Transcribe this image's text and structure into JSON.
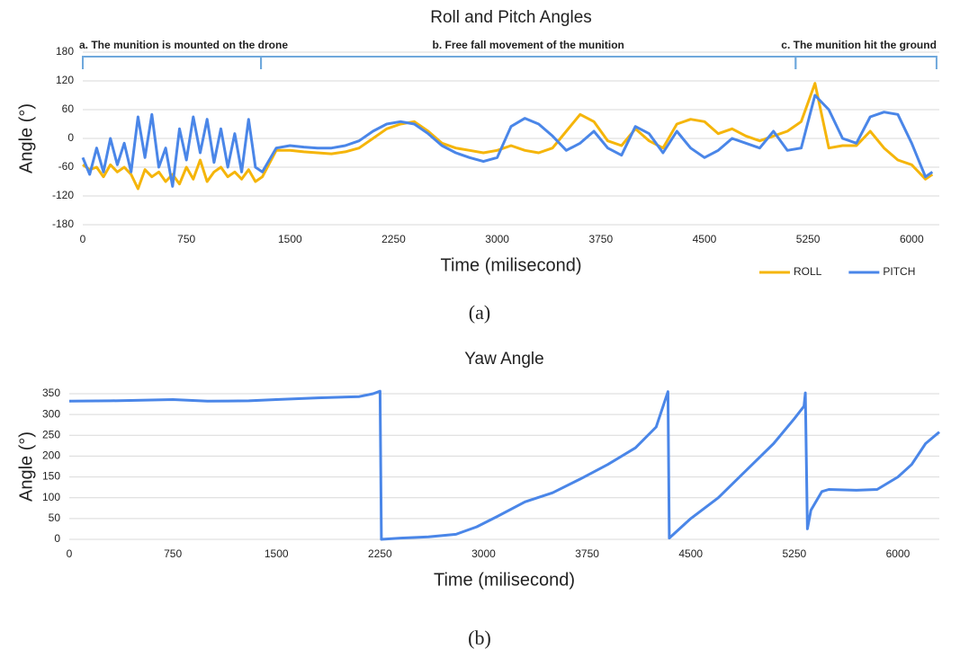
{
  "chart_data": [
    {
      "type": "line",
      "title": "Roll and Pitch Angles",
      "x_label": "Time (milisecond)",
      "y_label": "Angle (°)",
      "caption": "(a)",
      "x": [
        0,
        50,
        100,
        150,
        200,
        250,
        300,
        350,
        400,
        450,
        500,
        550,
        600,
        650,
        700,
        750,
        800,
        850,
        900,
        950,
        1000,
        1050,
        1100,
        1150,
        1200,
        1250,
        1300,
        1400,
        1500,
        1600,
        1700,
        1800,
        1900,
        2000,
        2100,
        2200,
        2300,
        2400,
        2500,
        2600,
        2700,
        2800,
        2900,
        3000,
        3100,
        3200,
        3300,
        3400,
        3500,
        3600,
        3700,
        3800,
        3900,
        4000,
        4100,
        4200,
        4300,
        4400,
        4500,
        4600,
        4700,
        4800,
        4900,
        5000,
        5100,
        5200,
        5300,
        5400,
        5500,
        5600,
        5700,
        5800,
        5900,
        6000,
        6100,
        6150
      ],
      "series": [
        {
          "name": "ROLL",
          "color": "#f5b50a",
          "values": [
            -55,
            -65,
            -60,
            -80,
            -55,
            -70,
            -60,
            -75,
            -105,
            -65,
            -80,
            -70,
            -90,
            -75,
            -95,
            -60,
            -85,
            -45,
            -90,
            -70,
            -60,
            -80,
            -70,
            -85,
            -65,
            -90,
            -80,
            -25,
            -25,
            -28,
            -30,
            -32,
            -28,
            -20,
            0,
            20,
            30,
            35,
            15,
            -10,
            -20,
            -25,
            -30,
            -25,
            -15,
            -25,
            -30,
            -20,
            15,
            50,
            35,
            -5,
            -15,
            20,
            -5,
            -20,
            30,
            40,
            35,
            10,
            20,
            5,
            -5,
            5,
            15,
            35,
            115,
            -20,
            -15,
            -15,
            15,
            -20,
            -45,
            -55,
            -85,
            -75
          ]
        },
        {
          "name": "PITCH",
          "color": "#4a86e8",
          "values": [
            -40,
            -75,
            -20,
            -70,
            0,
            -55,
            -10,
            -70,
            45,
            -40,
            50,
            -60,
            -20,
            -100,
            20,
            -45,
            45,
            -30,
            40,
            -50,
            20,
            -60,
            10,
            -70,
            40,
            -60,
            -70,
            -20,
            -15,
            -18,
            -20,
            -20,
            -15,
            -5,
            15,
            30,
            35,
            30,
            10,
            -15,
            -30,
            -40,
            -48,
            -40,
            25,
            42,
            30,
            5,
            -25,
            -10,
            15,
            -20,
            -35,
            25,
            10,
            -30,
            15,
            -20,
            -40,
            -25,
            0,
            -10,
            -20,
            15,
            -25,
            -20,
            90,
            60,
            0,
            -10,
            45,
            55,
            50,
            -10,
            -80,
            -70
          ]
        }
      ],
      "annotations": [
        {
          "text": "a. The munition is mounted on the drone",
          "start": 0,
          "end": 1290
        },
        {
          "text": "b. Free fall movement of the munition",
          "start": 1290,
          "end": 5160
        },
        {
          "text": "c. The munition hit the ground",
          "start": 5160,
          "end": 6180
        }
      ],
      "xlim": [
        0,
        6200
      ],
      "ylim": [
        -180,
        180
      ],
      "xticks": [
        0,
        750,
        1500,
        2250,
        3000,
        3750,
        4500,
        5250,
        6000
      ],
      "yticks": [
        -180,
        -120,
        -60,
        0,
        60,
        120,
        180
      ],
      "grid": true,
      "legend": "bottom-right"
    },
    {
      "type": "line",
      "title": "Yaw Angle",
      "x_label": "Time (milisecond)",
      "y_label": "Angle (°)",
      "caption": "(b)",
      "x": [
        0,
        300,
        750,
        1000,
        1300,
        1500,
        1800,
        2100,
        2200,
        2250,
        2260,
        2400,
        2600,
        2800,
        2950,
        3100,
        3300,
        3500,
        3700,
        3900,
        4100,
        4250,
        4335,
        4345,
        4500,
        4700,
        4900,
        5100,
        5250,
        5320,
        5330,
        5345,
        5370,
        5450,
        5500,
        5700,
        5850,
        6000,
        6100,
        6200,
        6300
      ],
      "series": [
        {
          "color": "#4a86e8",
          "values": [
            332,
            333,
            336,
            332,
            333,
            336,
            340,
            343,
            350,
            356,
            0,
            3,
            6,
            12,
            30,
            55,
            90,
            112,
            145,
            180,
            220,
            270,
            355,
            3,
            50,
            100,
            165,
            230,
            290,
            320,
            352,
            25,
            70,
            115,
            120,
            118,
            120,
            150,
            180,
            230,
            258
          ]
        }
      ],
      "xlim": [
        0,
        6300
      ],
      "ylim": [
        0,
        350
      ],
      "xticks": [
        0,
        750,
        1500,
        2250,
        3000,
        3750,
        4500,
        5250,
        6000
      ],
      "yticks": [
        0,
        50,
        100,
        150,
        200,
        250,
        300,
        350
      ],
      "grid": true
    }
  ]
}
